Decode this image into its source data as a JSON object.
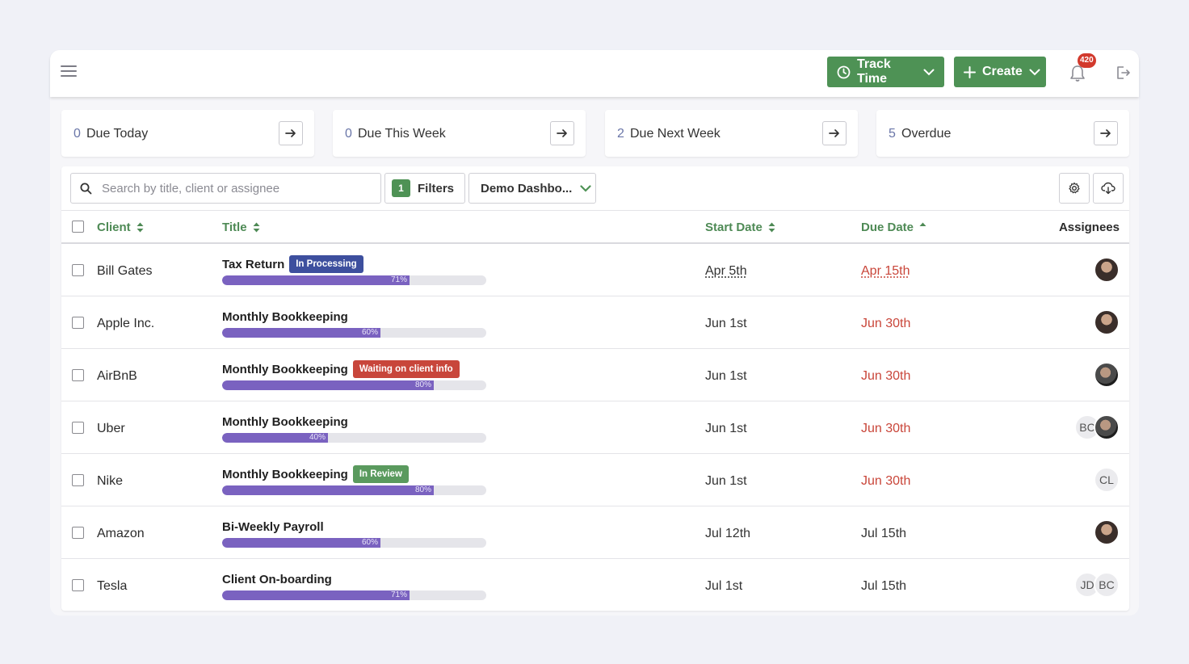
{
  "topbar": {
    "track_time_label": "Track Time",
    "create_label": "Create",
    "notification_count": "420"
  },
  "cards": [
    {
      "count": "0",
      "label": "Due Today"
    },
    {
      "count": "0",
      "label": "Due This Week"
    },
    {
      "count": "2",
      "label": "Due Next Week"
    },
    {
      "count": "5",
      "label": "Overdue"
    }
  ],
  "toolbar": {
    "search_placeholder": "Search by title, client or assignee",
    "filter_count": "1",
    "filters_label": "Filters",
    "dashboard_label": "Demo Dashbo..."
  },
  "table": {
    "headers": {
      "client": "Client",
      "title": "Title",
      "start_date": "Start Date",
      "due_date": "Due Date",
      "assignees": "Assignees"
    },
    "rows": [
      {
        "client": "Bill Gates",
        "title": "Tax Return",
        "tag": "In Processing",
        "tag_color": "#3d4f9e",
        "progress": 71,
        "progress_label": "71%",
        "start": "Apr 5th",
        "due": "Apr 15th",
        "due_late": true,
        "dotted": true,
        "assignees": [
          {
            "type": "photo",
            "name": "woman-avatar"
          }
        ]
      },
      {
        "client": "Apple Inc.",
        "title": "Monthly Bookkeeping",
        "tag": "",
        "tag_color": "",
        "progress": 60,
        "progress_label": "60%",
        "start": "Jun 1st",
        "due": "Jun 30th",
        "due_late": true,
        "dotted": false,
        "assignees": [
          {
            "type": "photo",
            "name": "woman-avatar"
          }
        ]
      },
      {
        "client": "AirBnB",
        "title": "Monthly Bookkeeping",
        "tag": "Waiting on client info",
        "tag_color": "#c8463b",
        "progress": 80,
        "progress_label": "80%",
        "start": "Jun 1st",
        "due": "Jun 30th",
        "due_late": true,
        "dotted": false,
        "assignees": [
          {
            "type": "photo2",
            "name": "man-avatar"
          }
        ]
      },
      {
        "client": "Uber",
        "title": "Monthly Bookkeeping",
        "tag": "",
        "tag_color": "",
        "progress": 40,
        "progress_label": "40%",
        "start": "Jun 1st",
        "due": "Jun 30th",
        "due_late": true,
        "dotted": false,
        "assignees": [
          {
            "type": "photo2",
            "name": "man-avatar"
          },
          {
            "type": "init",
            "text": "BC"
          }
        ]
      },
      {
        "client": "Nike",
        "title": "Monthly Bookkeeping",
        "tag": "In Review",
        "tag_color": "#5a9a5e",
        "progress": 80,
        "progress_label": "80%",
        "start": "Jun 1st",
        "due": "Jun 30th",
        "due_late": true,
        "dotted": false,
        "assignees": [
          {
            "type": "init",
            "text": "CL"
          }
        ]
      },
      {
        "client": "Amazon",
        "title": "Bi-Weekly Payroll",
        "tag": "",
        "tag_color": "",
        "progress": 60,
        "progress_label": "60%",
        "start": "Jul 12th",
        "due": "Jul 15th",
        "due_late": false,
        "dotted": false,
        "assignees": [
          {
            "type": "photo",
            "name": "woman-avatar"
          }
        ]
      },
      {
        "client": "Tesla",
        "title": "Client On-boarding",
        "tag": "",
        "tag_color": "",
        "progress": 71,
        "progress_label": "71%",
        "start": "Jul 1st",
        "due": "Jul 15th",
        "due_late": false,
        "dotted": false,
        "assignees": [
          {
            "type": "init",
            "text": "BC"
          },
          {
            "type": "init",
            "text": "JD"
          }
        ]
      }
    ]
  }
}
